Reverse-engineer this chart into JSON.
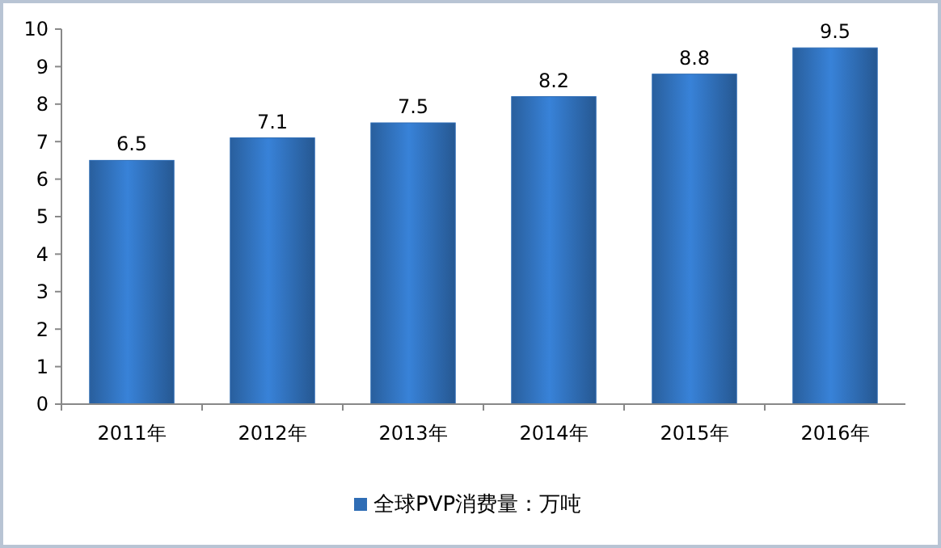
{
  "chart_data": {
    "type": "bar",
    "categories": [
      "2011年",
      "2012年",
      "2013年",
      "2014年",
      "2015年",
      "2016年"
    ],
    "series": [
      {
        "name": "全球PVP消费量：万吨",
        "color": "#2f6db5",
        "values": [
          6.5,
          7.1,
          7.5,
          8.2,
          8.8,
          9.5
        ]
      }
    ],
    "ylim": [
      0,
      10
    ],
    "yticks": [
      0,
      1,
      2,
      3,
      4,
      5,
      6,
      7,
      8,
      9,
      10
    ],
    "grid": false,
    "legend": "bottom",
    "data_labels": true
  }
}
